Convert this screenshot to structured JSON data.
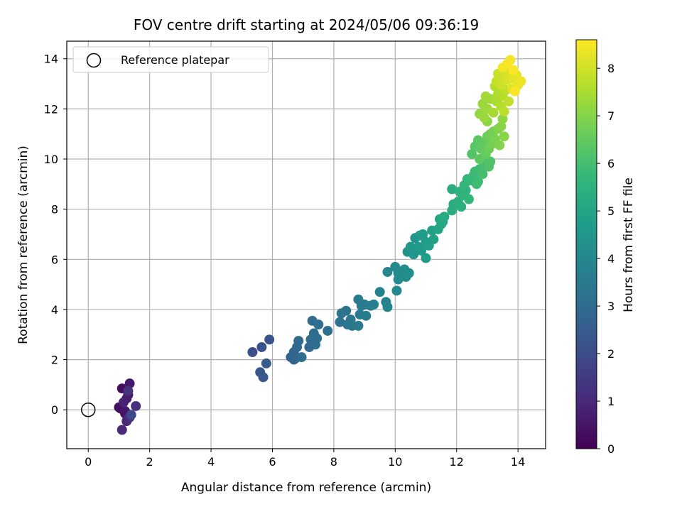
{
  "chart_data": {
    "type": "scatter",
    "title": "FOV centre drift starting at 2024/05/06 09:36:19",
    "xlabel": "Angular distance from reference (arcmin)",
    "ylabel": "Rotation from reference (arcmin)",
    "xlim": [
      -0.7,
      14.9
    ],
    "ylim": [
      -1.55,
      14.7
    ],
    "xticks": [
      0,
      2,
      4,
      6,
      8,
      10,
      12,
      14
    ],
    "yticks": [
      0,
      2,
      4,
      6,
      8,
      10,
      12,
      14
    ],
    "grid": true,
    "legend": {
      "position": "top-left",
      "entries": [
        "Reference platepar"
      ]
    },
    "reference_point": {
      "x": 0,
      "y": 0,
      "marker": "open-circle"
    },
    "colorbar": {
      "label": "Hours from first FF file",
      "colormap": "viridis",
      "range": [
        0,
        8.6
      ],
      "ticks": [
        0,
        1,
        2,
        3,
        4,
        5,
        6,
        7,
        8
      ]
    },
    "colormap_stops": [
      "#440154",
      "#482878",
      "#3e4989",
      "#31688e",
      "#26828e",
      "#1f9e89",
      "#35b779",
      "#6ece58",
      "#b5de2b",
      "#fde725"
    ],
    "series": [
      {
        "points": [
          [
            1.05,
            0.05,
            0.2
          ],
          [
            1.1,
            0.85,
            0.3
          ],
          [
            1.2,
            -0.15,
            0.4
          ],
          [
            1.3,
            0.6,
            0.5
          ],
          [
            1.35,
            1.05,
            0.6
          ],
          [
            1.25,
            0.45,
            0.7
          ],
          [
            1.15,
            0.3,
            0.8
          ],
          [
            1.25,
            -0.45,
            0.9
          ],
          [
            1.1,
            -0.8,
            1.0
          ],
          [
            1.35,
            -0.3,
            1.1
          ],
          [
            1.55,
            0.15,
            1.2
          ],
          [
            1.3,
            0.75,
            1.3
          ],
          [
            1.2,
            -0.05,
            0.5
          ],
          [
            1.4,
            -0.2,
            1.9
          ],
          [
            1.3,
            -0.35,
            1.0
          ],
          [
            1.0,
            0.1,
            0.35
          ],
          [
            5.35,
            2.3,
            2.1
          ],
          [
            5.65,
            2.5,
            2.2
          ],
          [
            5.6,
            1.5,
            2.3
          ],
          [
            5.7,
            1.3,
            2.4
          ],
          [
            5.8,
            1.85,
            2.5
          ],
          [
            5.9,
            2.8,
            2.2
          ],
          [
            6.6,
            2.1,
            2.7
          ],
          [
            6.7,
            2.3,
            2.8
          ],
          [
            6.75,
            2.05,
            2.85
          ],
          [
            6.8,
            2.5,
            2.9
          ],
          [
            6.85,
            2.75,
            2.95
          ],
          [
            6.95,
            2.1,
            3.0
          ],
          [
            6.7,
            2.0,
            2.75
          ],
          [
            7.2,
            2.5,
            2.95
          ],
          [
            7.3,
            3.55,
            3.0
          ],
          [
            7.35,
            3.05,
            3.05
          ],
          [
            7.4,
            2.6,
            3.05
          ],
          [
            7.45,
            2.85,
            3.1
          ],
          [
            7.5,
            3.4,
            3.1
          ],
          [
            7.25,
            2.8,
            3.0
          ],
          [
            7.8,
            3.15,
            3.2
          ],
          [
            8.2,
            3.5,
            3.25
          ],
          [
            8.25,
            3.85,
            3.3
          ],
          [
            8.4,
            3.95,
            3.3
          ],
          [
            8.45,
            3.4,
            3.35
          ],
          [
            8.55,
            3.6,
            3.4
          ],
          [
            8.6,
            3.35,
            3.4
          ],
          [
            8.8,
            4.4,
            3.5
          ],
          [
            8.85,
            3.8,
            3.5
          ],
          [
            8.9,
            4.15,
            3.55
          ],
          [
            8.8,
            3.35,
            3.55
          ],
          [
            9.0,
            4.2,
            3.6
          ],
          [
            9.05,
            3.75,
            3.6
          ],
          [
            9.2,
            4.15,
            3.65
          ],
          [
            9.3,
            4.2,
            3.7
          ],
          [
            9.5,
            4.7,
            3.8
          ],
          [
            9.7,
            4.3,
            3.85
          ],
          [
            9.75,
            4.1,
            3.9
          ],
          [
            9.75,
            5.5,
            4.0
          ],
          [
            10.0,
            5.7,
            4.05
          ],
          [
            10.05,
            4.75,
            4.1
          ],
          [
            10.1,
            5.2,
            4.1
          ],
          [
            10.2,
            5.4,
            4.15
          ],
          [
            10.3,
            5.6,
            4.2
          ],
          [
            10.35,
            5.3,
            4.2
          ],
          [
            10.45,
            5.45,
            4.25
          ],
          [
            10.1,
            5.45,
            4.1
          ],
          [
            10.4,
            6.3,
            4.4
          ],
          [
            10.5,
            6.5,
            4.45
          ],
          [
            10.6,
            6.2,
            4.5
          ],
          [
            10.65,
            6.85,
            4.55
          ],
          [
            10.75,
            6.5,
            4.6
          ],
          [
            10.85,
            6.35,
            4.65
          ],
          [
            10.9,
            7.0,
            4.7
          ],
          [
            11.0,
            6.7,
            4.75
          ],
          [
            11.0,
            6.05,
            4.75
          ],
          [
            11.1,
            6.55,
            4.8
          ],
          [
            11.2,
            7.15,
            4.85
          ],
          [
            11.25,
            6.8,
            4.9
          ],
          [
            10.55,
            6.45,
            4.5
          ],
          [
            10.8,
            6.95,
            4.65
          ],
          [
            11.4,
            7.2,
            5.0
          ],
          [
            11.45,
            7.6,
            5.05
          ],
          [
            11.55,
            7.5,
            5.1
          ],
          [
            11.6,
            7.7,
            5.15
          ],
          [
            11.5,
            7.4,
            5.1
          ],
          [
            11.85,
            7.95,
            5.3
          ],
          [
            11.9,
            8.2,
            5.35
          ],
          [
            12.05,
            8.3,
            5.4
          ],
          [
            12.15,
            8.1,
            5.45
          ],
          [
            12.2,
            8.55,
            5.5
          ],
          [
            12.3,
            8.75,
            5.55
          ],
          [
            12.4,
            8.4,
            5.6
          ],
          [
            12.1,
            8.7,
            5.5
          ],
          [
            11.85,
            8.8,
            5.3
          ],
          [
            12.25,
            8.95,
            5.6
          ],
          [
            12.35,
            9.2,
            5.7
          ],
          [
            12.45,
            9.15,
            5.75
          ],
          [
            12.55,
            9.35,
            5.8
          ],
          [
            12.6,
            9.5,
            5.85
          ],
          [
            12.7,
            9.1,
            5.9
          ],
          [
            12.75,
            9.6,
            5.95
          ],
          [
            12.85,
            9.4,
            6.0
          ],
          [
            12.9,
            9.8,
            6.05
          ],
          [
            12.95,
            9.95,
            6.1
          ],
          [
            13.05,
            9.7,
            6.15
          ],
          [
            13.1,
            9.9,
            6.2
          ],
          [
            12.65,
            9.0,
            5.9
          ],
          [
            12.5,
            10.2,
            6.25
          ],
          [
            12.6,
            10.5,
            6.3
          ],
          [
            12.7,
            10.75,
            6.35
          ],
          [
            12.75,
            10.0,
            6.4
          ],
          [
            12.8,
            10.4,
            6.45
          ],
          [
            12.9,
            10.65,
            6.5
          ],
          [
            12.95,
            10.2,
            6.55
          ],
          [
            13.0,
            10.9,
            6.6
          ],
          [
            13.05,
            10.4,
            6.65
          ],
          [
            13.1,
            11.0,
            6.7
          ],
          [
            13.15,
            10.6,
            6.75
          ],
          [
            13.2,
            11.1,
            6.8
          ],
          [
            13.25,
            10.8,
            6.85
          ],
          [
            13.35,
            11.2,
            6.9
          ],
          [
            13.4,
            10.55,
            6.95
          ],
          [
            13.45,
            11.3,
            7.0
          ],
          [
            13.55,
            10.9,
            7.05
          ],
          [
            12.85,
            10.5,
            6.5
          ],
          [
            13.0,
            11.5,
            7.1
          ],
          [
            13.5,
            11.6,
            7.15
          ],
          [
            12.75,
            11.8,
            7.2
          ],
          [
            12.85,
            12.2,
            7.25
          ],
          [
            12.9,
            11.65,
            7.3
          ],
          [
            13.0,
            12.0,
            7.35
          ],
          [
            13.1,
            12.4,
            7.4
          ],
          [
            13.2,
            11.85,
            7.45
          ],
          [
            13.3,
            12.3,
            7.5
          ],
          [
            13.35,
            12.6,
            7.55
          ],
          [
            13.45,
            12.1,
            7.6
          ],
          [
            13.5,
            12.5,
            7.65
          ],
          [
            13.55,
            11.9,
            7.7
          ],
          [
            13.6,
            12.75,
            7.75
          ],
          [
            13.7,
            12.3,
            7.8
          ],
          [
            12.95,
            12.5,
            7.4
          ],
          [
            13.25,
            12.9,
            7.6
          ],
          [
            13.3,
            13.1,
            7.85
          ],
          [
            13.35,
            13.4,
            7.9
          ],
          [
            13.45,
            12.95,
            7.95
          ],
          [
            13.55,
            13.3,
            8.0
          ],
          [
            13.6,
            13.6,
            8.05
          ],
          [
            13.65,
            13.15,
            8.1
          ],
          [
            13.75,
            13.45,
            8.15
          ],
          [
            13.8,
            12.8,
            8.2
          ],
          [
            13.85,
            13.2,
            8.25
          ],
          [
            13.95,
            13.35,
            8.3
          ],
          [
            14.0,
            12.95,
            8.35
          ],
          [
            14.1,
            13.1,
            8.4
          ],
          [
            13.75,
            13.95,
            8.45
          ],
          [
            13.5,
            13.65,
            8.5
          ],
          [
            13.9,
            12.7,
            8.55
          ],
          [
            13.65,
            13.8,
            8.5
          ],
          [
            13.85,
            13.55,
            8.55
          ]
        ],
        "point_fields": [
          "x",
          "y",
          "hours"
        ]
      }
    ]
  }
}
